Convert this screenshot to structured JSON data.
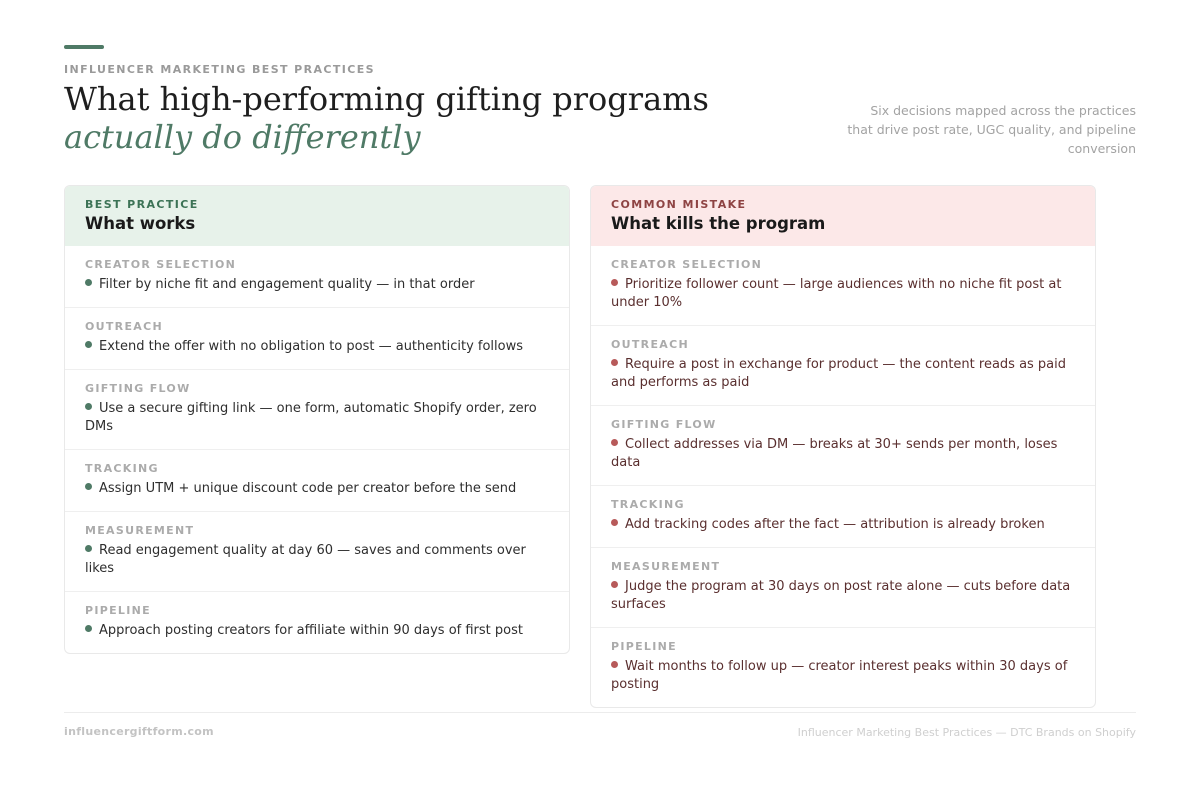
{
  "header": {
    "eyebrow": "INFLUENCER MARKETING BEST PRACTICES",
    "title_main": "What high-performing gifting programs ",
    "title_em": "actually do differently",
    "subtitle": "Six decisions mapped across the practices that drive post rate, UGC quality, and pipeline conversion"
  },
  "works": {
    "kicker": "BEST PRACTICE",
    "title": "What works",
    "rows": [
      {
        "category": "CREATOR SELECTION",
        "text": "Filter by niche fit and engagement quality — in that order"
      },
      {
        "category": "OUTREACH",
        "text": "Extend the offer with no obligation to post — authenticity follows"
      },
      {
        "category": "GIFTING FLOW",
        "text": "Use a secure gifting link — one form, automatic Shopify order, zero DMs"
      },
      {
        "category": "TRACKING",
        "text": "Assign UTM + unique discount code per creator before the send"
      },
      {
        "category": "MEASUREMENT",
        "text": "Read engagement quality at day 60 — saves and comments over likes"
      },
      {
        "category": "PIPELINE",
        "text": "Approach posting creators for affiliate within 90 days of first post"
      }
    ]
  },
  "mistakes": {
    "kicker": "COMMON MISTAKE",
    "title": "What kills the program",
    "rows": [
      {
        "category": "CREATOR SELECTION",
        "text": "Prioritize follower count — large audiences with no niche fit post at under 10%"
      },
      {
        "category": "OUTREACH",
        "text": "Require a post in exchange for product — the content reads as paid and performs as paid"
      },
      {
        "category": "GIFTING FLOW",
        "text": "Collect addresses via DM — breaks at 30+ sends per month, loses data"
      },
      {
        "category": "TRACKING",
        "text": "Add tracking codes after the fact — attribution is already broken"
      },
      {
        "category": "MEASUREMENT",
        "text": "Judge the program at 30 days on post rate alone — cuts before data surfaces"
      },
      {
        "category": "PIPELINE",
        "text": "Wait months to follow up — creator interest peaks within 30 days of posting"
      }
    ]
  },
  "footer": {
    "left": "influencergiftform.com",
    "right": "Influencer Marketing Best Practices — DTC Brands on Shopify"
  },
  "colors": {
    "accent_green": "#4f7a66",
    "works_header_bg": "#e7f2ea",
    "mistakes_header_bg": "#fce8e8",
    "mistake_dot": "#b75a5a"
  }
}
